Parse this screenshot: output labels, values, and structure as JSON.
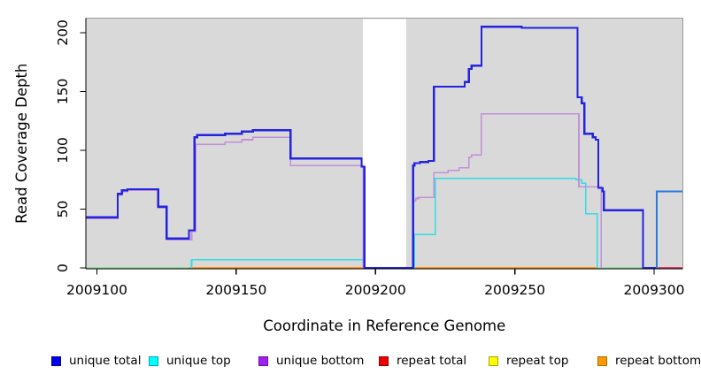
{
  "chart_data": {
    "type": "line",
    "subtype": "step-plot-read-coverage",
    "title": "",
    "xlabel": "Coordinate in Reference Genome",
    "ylabel": "Read Coverage Depth",
    "xlim": [
      2009096,
      2009310.5
    ],
    "ylim": [
      0,
      212
    ],
    "x_ticks": [
      "2009100",
      "2009150",
      "2009200",
      "2009250",
      "2009300"
    ],
    "x_tick_values": [
      2009100,
      2009150,
      2009200,
      2009250,
      2009300
    ],
    "y_ticks": [
      "0",
      "50",
      "100",
      "150",
      "200"
    ],
    "y_tick_values": [
      0,
      50,
      100,
      150,
      200
    ],
    "grid": false,
    "plot_bg": "#d9d9d9",
    "axis_color": "#000000",
    "box_color": "#9a9a9a",
    "gap_region": {
      "x_start": 2009195.5,
      "x_end": 2009211,
      "fill": "#ffffff",
      "note": "white band with no coverage data; only unique total at 0 crosses it"
    },
    "legend_position": "bottom",
    "legend": [
      {
        "label": "unique total",
        "color": "#0000ee",
        "border": "#00009a"
      },
      {
        "label": "unique top",
        "color": "#00ffff",
        "border": "#00a6b0"
      },
      {
        "label": "unique bottom",
        "color": "#a020f0",
        "border": "#6c12a6"
      },
      {
        "label": "repeat total",
        "color": "#ee0000",
        "border": "#990000"
      },
      {
        "label": "repeat top",
        "color": "#ffff00",
        "border": "#a8a400"
      },
      {
        "label": "repeat bottom",
        "color": "#ff9900",
        "border": "#b06a00"
      }
    ],
    "series": [
      {
        "name": "baseline-overlap-left",
        "legend_ref": "overlap of zero-depth lines (appears pale green)",
        "color": "#8fd79c",
        "width": 1.6,
        "points": [
          [
            2009096,
            0
          ]
        ],
        "end": 2009133
      },
      {
        "name": "baseline-overlap-right",
        "legend_ref": "overlap of zero-depth lines (appears pale green)",
        "color": "#8fd79c",
        "width": 1.6,
        "points": [
          [
            2009279.6,
            0
          ]
        ],
        "end": 2009300.8
      },
      {
        "name": "repeat-bottom-a",
        "legend_ref": "repeat bottom",
        "color": "#ff9211",
        "width": 1.8,
        "points": [
          [
            2009133,
            0
          ]
        ],
        "end": 2009195.5
      },
      {
        "name": "repeat-bottom-b",
        "legend_ref": "repeat bottom",
        "color": "#ff9211",
        "width": 1.8,
        "points": [
          [
            2009211,
            0
          ]
        ],
        "end": 2009279.6
      },
      {
        "name": "repeat-total-visible",
        "legend_ref": "repeat total",
        "color": "#dd3a66",
        "width": 1.8,
        "points": [
          [
            2009300.8,
            0
          ]
        ],
        "end": 2009310.3
      },
      {
        "name": "unique-top-a",
        "legend_ref": "unique top",
        "color": "#2fdde6",
        "width": 1.6,
        "points": [
          [
            2009133.7,
            0
          ],
          [
            2009134,
            7
          ],
          [
            2009195.5,
            0
          ]
        ],
        "end": 2009196
      },
      {
        "name": "unique-top-b",
        "legend_ref": "unique top",
        "color": "#2fdde6",
        "width": 1.6,
        "points": [
          [
            2009213.8,
            0
          ],
          [
            2009214,
            28.5
          ],
          [
            2009221.5,
            76
          ],
          [
            2009272,
            75
          ],
          [
            2009274,
            72
          ],
          [
            2009275.5,
            46
          ],
          [
            2009279.6,
            0
          ]
        ],
        "end": 2009279.8
      },
      {
        "name": "unique-bottom-a",
        "legend_ref": "unique bottom",
        "color": "#c28fd9",
        "width": 1.6,
        "points": [
          [
            2009096,
            42
          ],
          [
            2009107.5,
            62
          ],
          [
            2009109,
            65
          ],
          [
            2009111,
            66
          ],
          [
            2009122,
            51
          ],
          [
            2009125,
            24
          ],
          [
            2009134,
            31
          ],
          [
            2009135.5,
            105
          ],
          [
            2009146,
            107
          ],
          [
            2009152,
            109
          ],
          [
            2009156,
            111
          ],
          [
            2009169.5,
            87
          ],
          [
            2009195.5,
            0
          ]
        ],
        "end": 2009196
      },
      {
        "name": "unique-bottom-b",
        "legend_ref": "unique bottom",
        "color": "#c28fd9",
        "width": 1.6,
        "points": [
          [
            2009213.5,
            57
          ],
          [
            2009214.5,
            59
          ],
          [
            2009215.5,
            60
          ],
          [
            2009221,
            81
          ],
          [
            2009226,
            83
          ],
          [
            2009230,
            85
          ],
          [
            2009233.5,
            94
          ],
          [
            2009234.5,
            96
          ],
          [
            2009238,
            131
          ],
          [
            2009273,
            69
          ],
          [
            2009281,
            0
          ]
        ],
        "end": 2009281.3
      },
      {
        "name": "unique-total-main",
        "legend_ref": "unique total",
        "color": "#2323e0",
        "width": 2.2,
        "points": [
          [
            2009096,
            43
          ],
          [
            2009107.5,
            63
          ],
          [
            2009109,
            66
          ],
          [
            2009111,
            67
          ],
          [
            2009122,
            52
          ],
          [
            2009125,
            25
          ],
          [
            2009133,
            32
          ],
          [
            2009135,
            111
          ],
          [
            2009136,
            113
          ],
          [
            2009146,
            114
          ],
          [
            2009152,
            116
          ],
          [
            2009156,
            117
          ],
          [
            2009169.5,
            93
          ],
          [
            2009195,
            86
          ],
          [
            2009196,
            0
          ],
          [
            2009213.5,
            87
          ],
          [
            2009214,
            89
          ],
          [
            2009216,
            90
          ],
          [
            2009219,
            91
          ],
          [
            2009221,
            154
          ],
          [
            2009232,
            158
          ],
          [
            2009233.5,
            169
          ],
          [
            2009234.5,
            172
          ],
          [
            2009238,
            205
          ],
          [
            2009252.5,
            204
          ],
          [
            2009272.5,
            145
          ],
          [
            2009274,
            140
          ],
          [
            2009275,
            114
          ],
          [
            2009278,
            111
          ],
          [
            2009279,
            109
          ],
          [
            2009280,
            68
          ],
          [
            2009281.5,
            65
          ],
          [
            2009282,
            49
          ],
          [
            2009296,
            0
          ]
        ],
        "end": 2009300.8
      },
      {
        "name": "unique-total-tail",
        "legend_ref": "unique total",
        "color": "#2b79dd",
        "width": 2.2,
        "points": [
          [
            2009300.8,
            0
          ],
          [
            2009301,
            65
          ]
        ],
        "end": 2009310.3
      }
    ]
  }
}
